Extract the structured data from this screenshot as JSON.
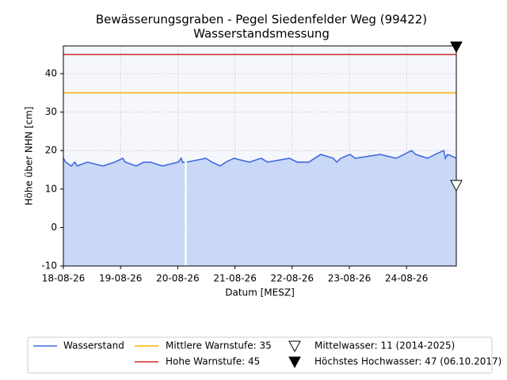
{
  "chart_data": {
    "type": "line",
    "title": "Bewässerungsgraben - Pegel Siedenfelder Weg (99422)",
    "subtitle": "Wasserstandsmessung",
    "x_label": "Datum [MESZ]",
    "y_label": "Höhe über NHN [cm]",
    "x": [
      0,
      0.04,
      0.14,
      0.2,
      0.24,
      0.42,
      0.69,
      0.9,
      1.04,
      1.08,
      1.27,
      1.41,
      1.52,
      1.73,
      2.01,
      2.06,
      2.08,
      2.12,
      2.14,
      2.16,
      2.49,
      2.6,
      2.74,
      2.84,
      2.98,
      3.25,
      3.46,
      3.57,
      3.95,
      4.09,
      4.29,
      4.5,
      4.72,
      4.78,
      4.85,
      5.01,
      5.1,
      5.54,
      5.82,
      6.09,
      6.16,
      6.37,
      6.5,
      6.65,
      6.68,
      6.72,
      6.87
    ],
    "series": [
      {
        "name": "Wasserstand",
        "color": "#4169e1",
        "values": [
          18,
          17,
          16,
          17,
          16,
          17,
          16,
          17,
          18,
          17,
          16,
          17,
          17,
          16,
          17,
          18,
          17,
          17,
          null,
          17,
          18,
          17,
          16,
          17,
          18,
          17,
          18,
          17,
          18,
          17,
          17,
          19,
          18,
          17,
          18,
          19,
          18,
          19,
          18,
          20,
          19,
          18,
          19,
          20,
          18,
          19,
          18
        ]
      }
    ],
    "fill_color": "#c9d8f7",
    "plot_background": "#f5f7fd",
    "reference_lines": [
      {
        "name": "Mittlere Warnstufe: 35",
        "value": 35,
        "color": "#ffb000"
      },
      {
        "name": "Hohe Warnstufe: 45",
        "value": 45,
        "color": "#d62728"
      }
    ],
    "markers": [
      {
        "name": "Mittelwasser: 11 (2014-2025)",
        "value": 11,
        "filled": false
      },
      {
        "name": "Höchstes Hochwasser: 47 (06.10.2017)",
        "value": 47,
        "filled": true
      }
    ],
    "xlim": [
      0,
      6.87
    ],
    "ylim": [
      -10,
      47.2
    ],
    "xticks": [
      {
        "value": 0,
        "label": "18-08-26"
      },
      {
        "value": 1,
        "label": "19-08-26"
      },
      {
        "value": 2,
        "label": "20-08-26"
      },
      {
        "value": 3,
        "label": "21-08-26"
      },
      {
        "value": 4,
        "label": "22-08-26"
      },
      {
        "value": 5,
        "label": "23-08-26"
      },
      {
        "value": 6,
        "label": "24-08-26"
      }
    ],
    "yticks": [
      -10,
      0,
      10,
      20,
      30,
      40
    ],
    "grid": true
  }
}
